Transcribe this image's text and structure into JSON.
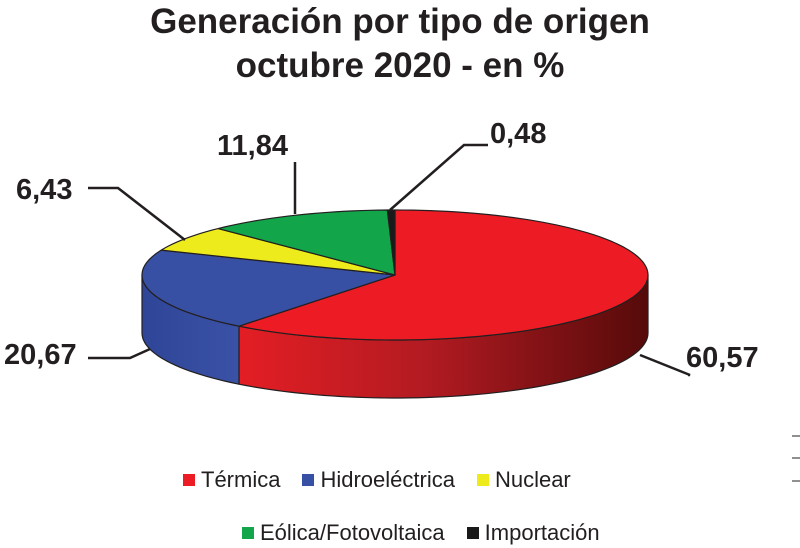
{
  "chart_data": {
    "type": "pie",
    "title": "Generación por tipo de origen",
    "subtitle": "octubre 2020 - en %",
    "categories": [
      "Térmica",
      "Hidroeléctrica",
      "Nuclear",
      "Eólica/Fotovoltaica",
      "Importación"
    ],
    "values": [
      60.57,
      20.67,
      6.43,
      11.84,
      0.48
    ],
    "data_labels": [
      "60,57",
      "20,67",
      "6,43",
      "11,84",
      "0,48"
    ],
    "colors": [
      "#ed1c24",
      "#3750a3",
      "#eeeb1c",
      "#12a54a",
      "#1a1a1a"
    ],
    "legend_position": "bottom"
  }
}
